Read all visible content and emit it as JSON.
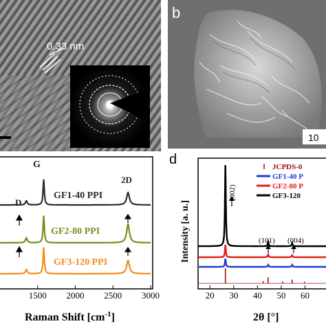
{
  "panel_a": {
    "lattice_label": "0.33 nm"
  },
  "panel_b": {
    "letter": "b",
    "scale_text": "10"
  },
  "panel_c": {
    "peak_labels": {
      "D": "D",
      "G": "G",
      "2D": "2D"
    },
    "xlabel": "Raman Shift [cm",
    "xlabel_sup": "-1",
    "xlabel_end": "]",
    "x_ticks": [
      "1500",
      "2000",
      "2500",
      "3000"
    ]
  },
  "panel_d": {
    "letter": "d",
    "ylabel": "Intensity [a. u.]",
    "xlabel": "2θ [°]",
    "x_ticks": [
      "20",
      "30",
      "40",
      "50",
      "60"
    ],
    "peak_labels": [
      "(002)",
      "(101)",
      "(004)"
    ]
  },
  "chart_data": [
    {
      "type": "line",
      "panel": "c",
      "xlabel": "Raman Shift [cm-1]",
      "ylabel": "",
      "xlim": [
        1000,
        3000
      ],
      "x_ticks": [
        1500,
        2000,
        2500,
        3000
      ],
      "series": [
        {
          "name": "GF1-40 PPI",
          "color": "#2b2b2b",
          "peaks": [
            {
              "x": 1350,
              "h": 0.1
            },
            {
              "x": 1580,
              "h": 0.62
            },
            {
              "x": 2700,
              "h": 0.3
            }
          ]
        },
        {
          "name": "GF2-80 PPI",
          "color": "#7a8d1c",
          "peaks": [
            {
              "x": 1350,
              "h": 0.12
            },
            {
              "x": 1580,
              "h": 0.66
            },
            {
              "x": 2700,
              "h": 0.45
            }
          ]
        },
        {
          "name": "GF3-120 PPI",
          "color": "#f28c1e",
          "peaks": [
            {
              "x": 1350,
              "h": 0.1
            },
            {
              "x": 1580,
              "h": 0.64
            },
            {
              "x": 2700,
              "h": 0.32
            }
          ]
        }
      ]
    },
    {
      "type": "line",
      "panel": "d",
      "xlabel": "2θ [°]",
      "ylabel": "Intensity [a. u.]",
      "xlim": [
        15,
        70
      ],
      "x_ticks": [
        20,
        30,
        40,
        50,
        60
      ],
      "legend": [
        "JCPDS-0",
        "GF1-40 P",
        "GF2-80 P",
        "GF3-120"
      ],
      "series": [
        {
          "name": "JCPDS-0",
          "color": "#a01010",
          "type": "stick",
          "sticks": [
            {
              "x": 26.5,
              "h": 1.0
            },
            {
              "x": 42.4,
              "h": 0.15
            },
            {
              "x": 44.5,
              "h": 0.4
            },
            {
              "x": 50.6,
              "h": 0.12
            },
            {
              "x": 54.6,
              "h": 0.25
            },
            {
              "x": 59.8,
              "h": 0.1
            }
          ]
        },
        {
          "name": "GF1-40 P",
          "color": "#1f3ad6",
          "peaks": [
            {
              "x": 26.5,
              "h": 0.12
            },
            {
              "x": 44.5,
              "h": 0.03
            },
            {
              "x": 54.6,
              "h": 0.03
            }
          ]
        },
        {
          "name": "GF2-80 P",
          "color": "#e11d1d",
          "peaks": [
            {
              "x": 26.5,
              "h": 0.18
            },
            {
              "x": 44.5,
              "h": 0.04
            },
            {
              "x": 54.6,
              "h": 0.03
            }
          ]
        },
        {
          "name": "GF3-120",
          "color": "#000000",
          "peaks": [
            {
              "x": 26.5,
              "h": 1.0
            },
            {
              "x": 44.5,
              "h": 0.06
            },
            {
              "x": 54.6,
              "h": 0.04
            }
          ]
        }
      ]
    }
  ]
}
